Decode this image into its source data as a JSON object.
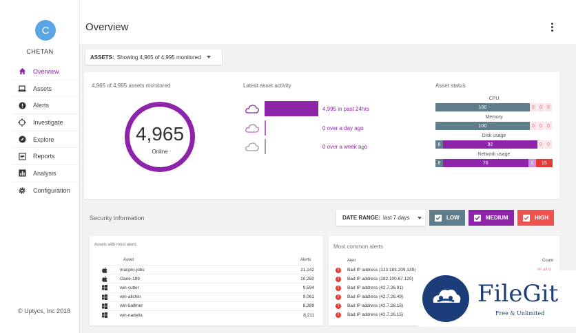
{
  "user": {
    "initial": "C",
    "name": "CHETAN"
  },
  "nav": [
    {
      "label": "Overview",
      "icon": "home-icon",
      "active": true
    },
    {
      "label": "Assets",
      "icon": "laptop-icon"
    },
    {
      "label": "Alerts",
      "icon": "alert-icon"
    },
    {
      "label": "Investigate",
      "icon": "crosshair-icon"
    },
    {
      "label": "Explore",
      "icon": "compass-icon"
    },
    {
      "label": "Reports",
      "icon": "reports-icon"
    },
    {
      "label": "Analysis",
      "icon": "bar-chart-icon"
    },
    {
      "label": "Configuration",
      "icon": "gear-icon"
    }
  ],
  "copyright": "© Uptycs, Inc 2018",
  "header": {
    "title": "Overview"
  },
  "assets_filter": {
    "label": "ASSETS:",
    "value": "Showing 4,965 of 4,995 monitored"
  },
  "monitored": {
    "caption": "4,965 of 4,995 assets monitored",
    "count": "4,965",
    "status": "Online"
  },
  "activity": {
    "title": "Latest asset activity",
    "rows": [
      {
        "text": "4,995 in past 24hrs",
        "fraction": 1.0,
        "icon": "cloud-icon"
      },
      {
        "text": "0 over a day ago",
        "fraction": 0.0,
        "icon": "cloud-icon"
      },
      {
        "text": "0 over a week ago",
        "fraction": 0.0,
        "icon": "cloud-icon"
      }
    ]
  },
  "asset_status": {
    "title": "Asset status",
    "metrics": [
      {
        "name": "CPU",
        "segments": [
          {
            "v": "100",
            "c": "grey",
            "w": 100
          },
          {
            "v": "0",
            "c": "pink",
            "w": 0
          },
          {
            "v": "0",
            "c": "pink",
            "w": 0
          },
          {
            "v": "0",
            "c": "pink",
            "w": 0
          }
        ]
      },
      {
        "name": "Memory",
        "segments": [
          {
            "v": "100",
            "c": "grey",
            "w": 100
          },
          {
            "v": "0",
            "c": "pink",
            "w": 0
          },
          {
            "v": "0",
            "c": "pink",
            "w": 0
          },
          {
            "v": "0",
            "c": "pink",
            "w": 0
          }
        ]
      },
      {
        "name": "Disk usage",
        "segments": [
          {
            "v": "8",
            "c": "grey",
            "w": 8
          },
          {
            "v": "92",
            "c": "purple",
            "w": 92
          },
          {
            "v": "0",
            "c": "pink",
            "w": 0
          },
          {
            "v": "0",
            "c": "pink",
            "w": 0
          }
        ]
      },
      {
        "name": "Network usage",
        "segments": [
          {
            "v": "8",
            "c": "grey",
            "w": 8
          },
          {
            "v": "76",
            "c": "purple",
            "w": 76
          },
          {
            "v": "1",
            "c": "lavender",
            "w": 1
          },
          {
            "v": "15",
            "c": "red",
            "w": 15
          }
        ]
      }
    ]
  },
  "security": {
    "title": "Security information",
    "date_range_label": "DATE RANGE:",
    "date_range_value": "last 7 days",
    "severities": [
      {
        "label": "LOW",
        "color": "#607d8b"
      },
      {
        "label": "MEDIUM",
        "color": "#8e24aa"
      },
      {
        "label": "HIGH",
        "color": "#ef5350"
      }
    ]
  },
  "assets_table": {
    "title": "Assets with most alerts",
    "col_asset": "Asset",
    "col_alerts": "Alerts",
    "rows": [
      {
        "os": "apple-icon",
        "name": "macpro-jobs",
        "alerts": "21,142"
      },
      {
        "os": "apple-icon",
        "name": "Gane-189",
        "alerts": "10,250"
      },
      {
        "os": "windows-icon",
        "name": "win-cutler",
        "alerts": "9,594"
      },
      {
        "os": "windows-icon",
        "name": "win-allchin",
        "alerts": "9,061"
      },
      {
        "os": "windows-icon",
        "name": "win-ballmer",
        "alerts": "8,389"
      },
      {
        "os": "windows-icon",
        "name": "win-nadella",
        "alerts": "8,211"
      }
    ]
  },
  "alerts_table": {
    "title": "Most common alerts",
    "col_alert": "Alert",
    "col_count": "Count",
    "rows": [
      {
        "alert": "Bad IP address (123.183.209.139)",
        "count": "35,419"
      },
      {
        "alert": "Bad IP address (182.100.67.120)",
        "count": ""
      },
      {
        "alert": "Bad IP address (42.7.26.91)",
        "count": ""
      },
      {
        "alert": "Bad IP address (42.7.26.49)",
        "count": ""
      },
      {
        "alert": "Bad IP address (42.7.26.16)",
        "count": ""
      },
      {
        "alert": "Bad IP address (42.7.26.15)",
        "count": ""
      }
    ]
  },
  "watermark": {
    "brand": "FileGit",
    "tagline": "Free & Unlimited"
  },
  "colors": {
    "accent": "#8e24aa",
    "grey": "#607d8b",
    "red": "#e53935",
    "avatar": "#5aa5e6"
  }
}
